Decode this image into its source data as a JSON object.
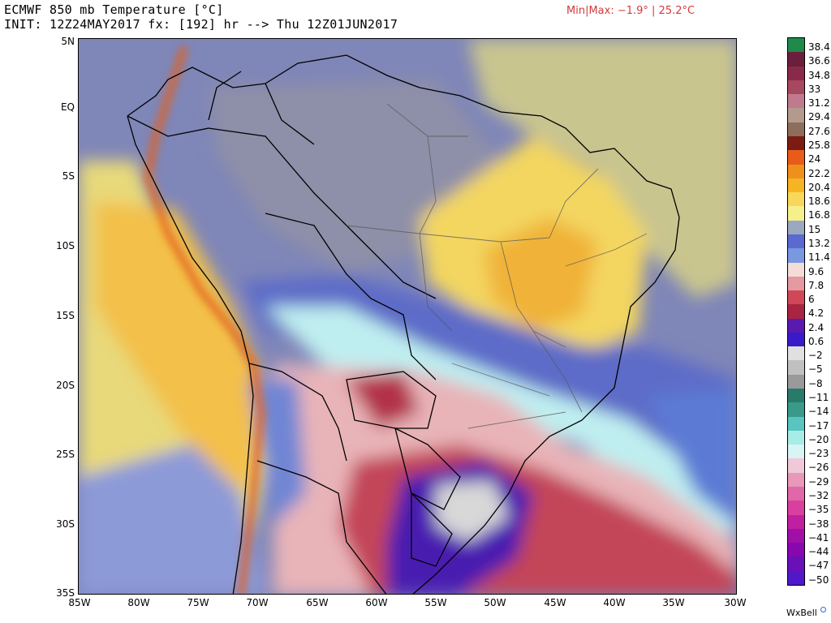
{
  "header": {
    "title": "ECMWF 850 mb Temperature [°C]",
    "init_line": "INIT: 12Z24MAY2017 fx: [192] hr --> Thu 12Z01JUN2017",
    "minmax": "Min|Max: −1.9° | 25.2°C"
  },
  "map": {
    "lat_labels": [
      "5N",
      "EQ",
      "5S",
      "10S",
      "15S",
      "20S",
      "25S",
      "30S",
      "35S"
    ],
    "lon_labels": [
      "85W",
      "80W",
      "75W",
      "70W",
      "65W",
      "60W",
      "55W",
      "50W",
      "45W",
      "40W",
      "35W",
      "30W"
    ]
  },
  "colorbar": {
    "labels": [
      "38.4",
      "36.6",
      "34.8",
      "33",
      "31.2",
      "29.4",
      "27.6",
      "25.8",
      "24",
      "22.2",
      "20.4",
      "18.6",
      "16.8",
      "15",
      "13.2",
      "11.4",
      "9.6",
      "7.8",
      "6",
      "4.2",
      "2.4",
      "0.6",
      "−2",
      "−5",
      "−8",
      "−11",
      "−14",
      "−17",
      "−20",
      "−23",
      "−26",
      "−29",
      "−32",
      "−35",
      "−38",
      "−41",
      "−44",
      "−47",
      "−50"
    ],
    "colors": [
      "#1f8a4a",
      "#6b1f3c",
      "#8a2a4a",
      "#a84860",
      "#bf7a8e",
      "#b49a8c",
      "#8c6e5a",
      "#7a1c14",
      "#e85c18",
      "#f0901c",
      "#f6b424",
      "#f8d85a",
      "#f6f08c",
      "#9aa8c0",
      "#5a6ad0",
      "#7898e0",
      "#f4dcd8",
      "#e49aa0",
      "#d04858",
      "#a82440",
      "#5a1ab0",
      "#3a1ac8",
      "#e0e0e0",
      "#c0c0c0",
      "#9a9a9a",
      "#2a7a6a",
      "#3a9a8a",
      "#5ac4c0",
      "#a8ece8",
      "#d8f4f4",
      "#f0c8d8",
      "#e898b8",
      "#e068a8",
      "#d840a0",
      "#c020a0",
      "#a010a8",
      "#8808b0",
      "#6a10b8",
      "#5018c8"
    ]
  },
  "credit": "WxBell"
}
